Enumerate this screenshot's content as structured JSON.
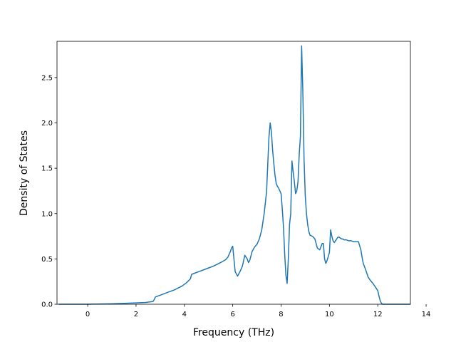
{
  "chart_data": {
    "type": "line",
    "title": "",
    "xlabel": "Frequency (THz)",
    "ylabel": "Density of States",
    "xlim": [
      -1.27,
      13.35
    ],
    "ylim": [
      0,
      2.9
    ],
    "xticks": [
      0,
      2,
      4,
      6,
      8,
      10,
      12,
      14
    ],
    "xtick_labels": [
      "0",
      "2",
      "4",
      "6",
      "8",
      "10",
      "12",
      "14"
    ],
    "yticks": [
      0.0,
      0.5,
      1.0,
      1.5,
      2.0,
      2.5
    ],
    "ytick_labels": [
      "0.0",
      "0.5",
      "1.0",
      "1.5",
      "2.0",
      "2.5"
    ],
    "grid": false,
    "line_color": "#1f77b4",
    "series": [
      {
        "x": [
          -1.2,
          0,
          1,
          1.5,
          2,
          2.4,
          2.7,
          2.75,
          2.8,
          3.0,
          3.3,
          3.6,
          3.9,
          4.1,
          4.25,
          4.3,
          4.4,
          4.6,
          4.9,
          5.2,
          5.5,
          5.7,
          5.8,
          5.9,
          5.95,
          6.0,
          6.1,
          6.2,
          6.3,
          6.4,
          6.5,
          6.6,
          6.65,
          6.7,
          6.8,
          6.9,
          7.0,
          7.1,
          7.2,
          7.3,
          7.4,
          7.45,
          7.5,
          7.55,
          7.6,
          7.65,
          7.7,
          7.75,
          7.8,
          7.85,
          7.9,
          8.0,
          8.05,
          8.1,
          8.15,
          8.2,
          8.25,
          8.3,
          8.35,
          8.4,
          8.45,
          8.5,
          8.55,
          8.6,
          8.65,
          8.7,
          8.75,
          8.8,
          8.85,
          8.9,
          8.95,
          9.0,
          9.05,
          9.1,
          9.15,
          9.2,
          9.3,
          9.4,
          9.5,
          9.6,
          9.7,
          9.75,
          9.8,
          9.85,
          9.9,
          10.0,
          10.05,
          10.1,
          10.15,
          10.2,
          10.25,
          10.3,
          10.35,
          10.4,
          10.5,
          10.55,
          10.6,
          10.7,
          10.8,
          10.9,
          11.0,
          11.1,
          11.2,
          11.3,
          11.35,
          11.4,
          11.5,
          11.6,
          11.7,
          11.8,
          11.9,
          12.0,
          12.05,
          12.1,
          12.15,
          12.2,
          12.5,
          13.0,
          13.35
        ],
        "y": [
          0,
          0,
          0.005,
          0.01,
          0.015,
          0.02,
          0.03,
          0.05,
          0.08,
          0.1,
          0.13,
          0.16,
          0.2,
          0.24,
          0.28,
          0.33,
          0.34,
          0.36,
          0.39,
          0.42,
          0.46,
          0.49,
          0.52,
          0.58,
          0.62,
          0.64,
          0.36,
          0.31,
          0.36,
          0.42,
          0.54,
          0.5,
          0.46,
          0.48,
          0.58,
          0.63,
          0.66,
          0.72,
          0.82,
          1.0,
          1.24,
          1.55,
          1.85,
          2.0,
          1.9,
          1.7,
          1.55,
          1.42,
          1.33,
          1.3,
          1.28,
          1.22,
          1.05,
          0.85,
          0.55,
          0.32,
          0.23,
          0.5,
          0.88,
          1.0,
          1.58,
          1.46,
          1.35,
          1.22,
          1.25,
          1.35,
          1.65,
          1.85,
          2.85,
          2.35,
          1.6,
          1.2,
          1.0,
          0.88,
          0.8,
          0.76,
          0.75,
          0.72,
          0.62,
          0.6,
          0.67,
          0.67,
          0.5,
          0.45,
          0.48,
          0.57,
          0.82,
          0.75,
          0.7,
          0.68,
          0.7,
          0.72,
          0.74,
          0.74,
          0.72,
          0.72,
          0.71,
          0.71,
          0.7,
          0.7,
          0.69,
          0.69,
          0.69,
          0.6,
          0.52,
          0.45,
          0.38,
          0.3,
          0.26,
          0.23,
          0.19,
          0.15,
          0.09,
          0.04,
          0.01,
          0,
          0,
          0,
          0
        ]
      }
    ]
  }
}
